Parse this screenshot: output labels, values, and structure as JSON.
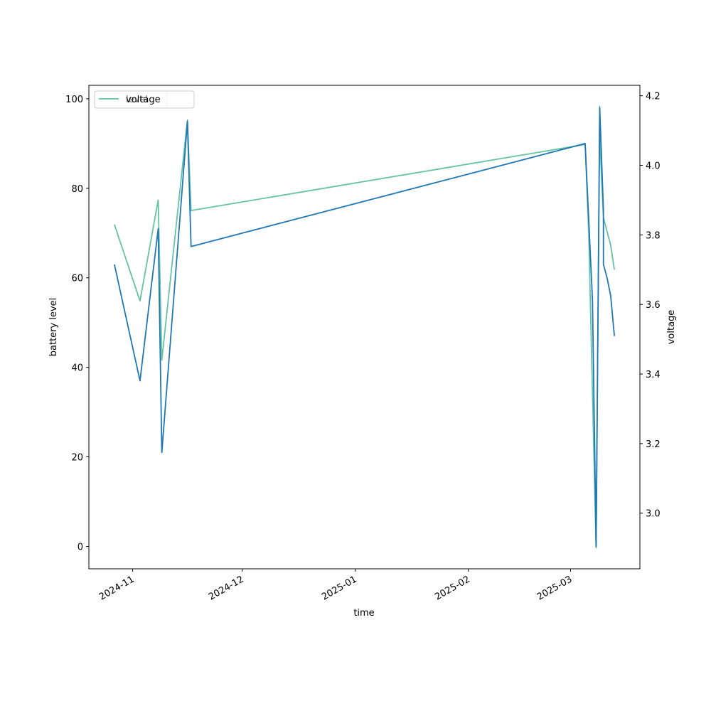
{
  "chart_data": {
    "type": "line",
    "title": "",
    "xlabel": "time",
    "ylabel": "battery level",
    "y2label": "voltage",
    "x_ticks": [
      "2024-11",
      "2024-12",
      "2025-01",
      "2025-02",
      "2025-03"
    ],
    "y_ticks": [
      "0",
      "20",
      "40",
      "60",
      "80",
      "100"
    ],
    "y2_ticks": [
      "3.0",
      "3.2",
      "3.4",
      "3.6",
      "3.8",
      "4.0",
      "4.2"
    ],
    "xlim": [
      "2024-10-20",
      "2025-03-20"
    ],
    "ylim": [
      -5,
      103
    ],
    "y2lim": [
      2.84,
      4.23
    ],
    "legend_position": "upper-left",
    "series": [
      {
        "name": "level",
        "axis": "left",
        "color": "#1f77b4",
        "points": [
          [
            "2024-10-27",
            63
          ],
          [
            "2024-11-03",
            37
          ],
          [
            "2024-11-08",
            71
          ],
          [
            "2024-11-09",
            21
          ],
          [
            "2024-11-16",
            95
          ],
          [
            "2024-11-17",
            67
          ],
          [
            "2025-03-05",
            90
          ],
          [
            "2025-03-07",
            55
          ],
          [
            "2025-03-08",
            0
          ],
          [
            "2025-03-09",
            98
          ],
          [
            "2025-03-10",
            75
          ],
          [
            "2025-03-10",
            63
          ],
          [
            "2025-03-11",
            60
          ],
          [
            "2025-03-12",
            56
          ],
          [
            "2025-03-13",
            47
          ]
        ]
      },
      {
        "name": "voltage",
        "axis": "right",
        "color": "#66c2a5",
        "points": [
          [
            "2024-10-27",
            3.83
          ],
          [
            "2024-11-03",
            3.61
          ],
          [
            "2024-11-08",
            3.9
          ],
          [
            "2024-11-09",
            3.44
          ],
          [
            "2024-11-16",
            4.13
          ],
          [
            "2024-11-17",
            3.87
          ],
          [
            "2025-03-05",
            4.06
          ],
          [
            "2025-03-06",
            3.8
          ],
          [
            "2025-03-08",
            2.9
          ],
          [
            "2025-03-09",
            4.17
          ],
          [
            "2025-03-09",
            4.08
          ],
          [
            "2025-03-10",
            3.85
          ],
          [
            "2025-03-11",
            3.81
          ],
          [
            "2025-03-12",
            3.77
          ],
          [
            "2025-03-13",
            3.7
          ]
        ]
      }
    ]
  }
}
